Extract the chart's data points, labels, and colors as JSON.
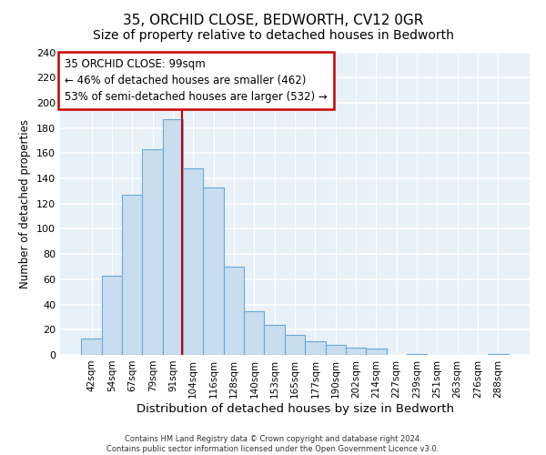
{
  "title": "35, ORCHID CLOSE, BEDWORTH, CV12 0GR",
  "subtitle": "Size of property relative to detached houses in Bedworth",
  "xlabel": "Distribution of detached houses by size in Bedworth",
  "ylabel": "Number of detached properties",
  "bar_labels": [
    "42sqm",
    "54sqm",
    "67sqm",
    "79sqm",
    "91sqm",
    "104sqm",
    "116sqm",
    "128sqm",
    "140sqm",
    "153sqm",
    "165sqm",
    "177sqm",
    "190sqm",
    "202sqm",
    "214sqm",
    "227sqm",
    "239sqm",
    "251sqm",
    "263sqm",
    "276sqm",
    "288sqm"
  ],
  "bar_heights": [
    13,
    63,
    127,
    163,
    187,
    148,
    133,
    70,
    35,
    24,
    16,
    11,
    8,
    6,
    5,
    0,
    1,
    0,
    0,
    0,
    1
  ],
  "bar_color": "#c8ddf0",
  "bar_edge_color": "#6aaad4",
  "vline_x_index": 4.47,
  "vline_color": "#cc0000",
  "annotation_title": "35 ORCHID CLOSE: 99sqm",
  "annotation_line1": "← 46% of detached houses are smaller (462)",
  "annotation_line2": "53% of semi-detached houses are larger (532) →",
  "annotation_box_facecolor": "#ffffff",
  "annotation_box_edgecolor": "#cc0000",
  "ylim": [
    0,
    240
  ],
  "yticks": [
    0,
    20,
    40,
    60,
    80,
    100,
    120,
    140,
    160,
    180,
    200,
    220,
    240
  ],
  "footer_line1": "Contains HM Land Registry data © Crown copyright and database right 2024.",
  "footer_line2": "Contains public sector information licensed under the Open Government Licence v3.0.",
  "bg_color": "#ffffff",
  "plot_bg_color": "#e8f0f8",
  "grid_color": "#ffffff",
  "title_fontsize": 11,
  "subtitle_fontsize": 10
}
